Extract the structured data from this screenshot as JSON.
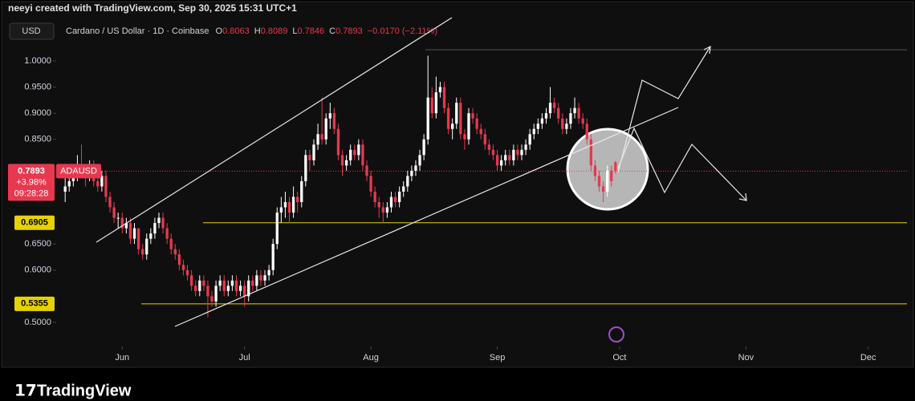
{
  "chart_data": {
    "type": "candlestick",
    "credit": "neeyi created with TradingView.com, Sep 30, 2025 15:31 UTC+1",
    "currency": "USD",
    "title": "Cardano / US Dollar · 1D · Coinbase",
    "ohlc_labels": [
      "O",
      "H",
      "L",
      "C"
    ],
    "change": "−0.0170 (−2.11%)",
    "symbol": "ADAUSD",
    "daily_change": "+3.98%",
    "countdown": "09:28:28",
    "brand": "TradingView",
    "up_color": "#ffffff",
    "down_color": "#e8384f",
    "level_color": "#e6d200",
    "levels": [
      0.6905,
      0.5355
    ],
    "xlim": [
      -2.2,
      200.6
    ],
    "xticks": [
      {
        "value": 14,
        "label": "Jun"
      },
      {
        "value": 44,
        "label": "Jul"
      },
      {
        "value": 75,
        "label": "Aug"
      },
      {
        "value": 106,
        "label": "Sep"
      },
      {
        "value": 136,
        "label": "Oct"
      },
      {
        "value": 167,
        "label": "Nov"
      },
      {
        "value": 197,
        "label": "Dec"
      }
    ],
    "ylim": [
      0.457,
      1.0245
    ],
    "yticks": [
      {
        "value": 1,
        "label": "1.0000"
      },
      {
        "value": 0.95,
        "label": "0.9500"
      },
      {
        "value": 0.9,
        "label": "0.9000"
      },
      {
        "value": 0.85,
        "label": "0.8500"
      },
      {
        "value": 0.65,
        "label": "0.6500"
      },
      {
        "value": 0.6,
        "label": "0.6000"
      },
      {
        "value": 0.5,
        "label": "0.5000"
      }
    ],
    "ohlc": [
      [
        0.75,
        0.78,
        0.73,
        0.76
      ],
      [
        0.76,
        0.79,
        0.75,
        0.77
      ],
      [
        0.77,
        0.8,
        0.76,
        0.78
      ],
      [
        0.78,
        0.82,
        0.77,
        0.8
      ],
      [
        0.8,
        0.84,
        0.78,
        0.79
      ],
      [
        0.79,
        0.8,
        0.76,
        0.78
      ],
      [
        0.78,
        0.81,
        0.77,
        0.8
      ],
      [
        0.8,
        0.81,
        0.76,
        0.77
      ],
      [
        0.77,
        0.78,
        0.75,
        0.76
      ],
      [
        0.76,
        0.79,
        0.75,
        0.78
      ],
      [
        0.78,
        0.79,
        0.73,
        0.74
      ],
      [
        0.74,
        0.75,
        0.71,
        0.72
      ],
      [
        0.72,
        0.73,
        0.69,
        0.7
      ],
      [
        0.7,
        0.71,
        0.68,
        0.7
      ],
      [
        0.7,
        0.71,
        0.67,
        0.68
      ],
      [
        0.68,
        0.7,
        0.67,
        0.69
      ],
      [
        0.69,
        0.7,
        0.65,
        0.66
      ],
      [
        0.66,
        0.69,
        0.65,
        0.68
      ],
      [
        0.68,
        0.68,
        0.63,
        0.64
      ],
      [
        0.64,
        0.65,
        0.62,
        0.63
      ],
      [
        0.63,
        0.67,
        0.62,
        0.66
      ],
      [
        0.66,
        0.68,
        0.65,
        0.67
      ],
      [
        0.67,
        0.7,
        0.66,
        0.69
      ],
      [
        0.69,
        0.71,
        0.68,
        0.7
      ],
      [
        0.7,
        0.71,
        0.67,
        0.68
      ],
      [
        0.68,
        0.69,
        0.65,
        0.66
      ],
      [
        0.66,
        0.67,
        0.63,
        0.64
      ],
      [
        0.64,
        0.65,
        0.62,
        0.63
      ],
      [
        0.63,
        0.64,
        0.6,
        0.61
      ],
      [
        0.61,
        0.62,
        0.59,
        0.6
      ],
      [
        0.6,
        0.61,
        0.58,
        0.59
      ],
      [
        0.59,
        0.6,
        0.56,
        0.57
      ],
      [
        0.57,
        0.58,
        0.55,
        0.56
      ],
      [
        0.56,
        0.59,
        0.55,
        0.58
      ],
      [
        0.58,
        0.59,
        0.56,
        0.57
      ],
      [
        0.57,
        0.58,
        0.51,
        0.55
      ],
      [
        0.55,
        0.56,
        0.53,
        0.54
      ],
      [
        0.54,
        0.58,
        0.53,
        0.57
      ],
      [
        0.57,
        0.59,
        0.56,
        0.58
      ],
      [
        0.58,
        0.59,
        0.55,
        0.56
      ],
      [
        0.56,
        0.58,
        0.55,
        0.57
      ],
      [
        0.57,
        0.59,
        0.56,
        0.58
      ],
      [
        0.58,
        0.59,
        0.55,
        0.56
      ],
      [
        0.56,
        0.58,
        0.55,
        0.57
      ],
      [
        0.57,
        0.58,
        0.53,
        0.55
      ],
      [
        0.55,
        0.59,
        0.54,
        0.58
      ],
      [
        0.58,
        0.59,
        0.56,
        0.57
      ],
      [
        0.57,
        0.6,
        0.56,
        0.59
      ],
      [
        0.59,
        0.6,
        0.57,
        0.58
      ],
      [
        0.58,
        0.6,
        0.57,
        0.59
      ],
      [
        0.59,
        0.61,
        0.58,
        0.6
      ],
      [
        0.6,
        0.66,
        0.59,
        0.65
      ],
      [
        0.65,
        0.72,
        0.64,
        0.71
      ],
      [
        0.71,
        0.74,
        0.69,
        0.72
      ],
      [
        0.72,
        0.75,
        0.7,
        0.73
      ],
      [
        0.73,
        0.74,
        0.69,
        0.71
      ],
      [
        0.71,
        0.76,
        0.7,
        0.74
      ],
      [
        0.74,
        0.75,
        0.71,
        0.73
      ],
      [
        0.73,
        0.78,
        0.72,
        0.77
      ],
      [
        0.77,
        0.83,
        0.76,
        0.82
      ],
      [
        0.82,
        0.83,
        0.79,
        0.81
      ],
      [
        0.81,
        0.85,
        0.8,
        0.84
      ],
      [
        0.84,
        0.88,
        0.83,
        0.86
      ],
      [
        0.86,
        0.93,
        0.84,
        0.85
      ],
      [
        0.85,
        0.9,
        0.84,
        0.89
      ],
      [
        0.89,
        0.92,
        0.87,
        0.9
      ],
      [
        0.9,
        0.91,
        0.86,
        0.87
      ],
      [
        0.87,
        0.88,
        0.81,
        0.82
      ],
      [
        0.82,
        0.83,
        0.78,
        0.8
      ],
      [
        0.8,
        0.82,
        0.79,
        0.81
      ],
      [
        0.81,
        0.84,
        0.8,
        0.83
      ],
      [
        0.83,
        0.84,
        0.81,
        0.82
      ],
      [
        0.82,
        0.85,
        0.81,
        0.84
      ],
      [
        0.84,
        0.85,
        0.79,
        0.8
      ],
      [
        0.8,
        0.81,
        0.77,
        0.78
      ],
      [
        0.78,
        0.79,
        0.74,
        0.75
      ],
      [
        0.75,
        0.76,
        0.72,
        0.73
      ],
      [
        0.73,
        0.74,
        0.7,
        0.72
      ],
      [
        0.72,
        0.73,
        0.69,
        0.71
      ],
      [
        0.71,
        0.73,
        0.7,
        0.72
      ],
      [
        0.72,
        0.75,
        0.71,
        0.74
      ],
      [
        0.74,
        0.75,
        0.72,
        0.73
      ],
      [
        0.73,
        0.76,
        0.72,
        0.75
      ],
      [
        0.75,
        0.77,
        0.74,
        0.76
      ],
      [
        0.76,
        0.79,
        0.75,
        0.78
      ],
      [
        0.78,
        0.8,
        0.77,
        0.79
      ],
      [
        0.79,
        0.81,
        0.78,
        0.8
      ],
      [
        0.8,
        0.83,
        0.79,
        0.82
      ],
      [
        0.82,
        0.86,
        0.81,
        0.85
      ],
      [
        0.85,
        1.01,
        0.84,
        0.93
      ],
      [
        0.93,
        0.95,
        0.89,
        0.9
      ],
      [
        0.9,
        0.97,
        0.89,
        0.94
      ],
      [
        0.94,
        0.96,
        0.93,
        0.95
      ],
      [
        0.95,
        0.96,
        0.9,
        0.91
      ],
      [
        0.91,
        0.92,
        0.86,
        0.87
      ],
      [
        0.87,
        0.89,
        0.85,
        0.88
      ],
      [
        0.88,
        0.93,
        0.87,
        0.92
      ],
      [
        0.92,
        0.93,
        0.85,
        0.86
      ],
      [
        0.86,
        0.87,
        0.83,
        0.85
      ],
      [
        0.85,
        0.91,
        0.84,
        0.9
      ],
      [
        0.9,
        0.91,
        0.88,
        0.89
      ],
      [
        0.89,
        0.9,
        0.86,
        0.87
      ],
      [
        0.87,
        0.88,
        0.85,
        0.86
      ],
      [
        0.86,
        0.87,
        0.83,
        0.84
      ],
      [
        0.84,
        0.85,
        0.82,
        0.83
      ],
      [
        0.83,
        0.84,
        0.81,
        0.82
      ],
      [
        0.82,
        0.83,
        0.79,
        0.8
      ],
      [
        0.8,
        0.82,
        0.79,
        0.81
      ],
      [
        0.81,
        0.83,
        0.8,
        0.82
      ],
      [
        0.82,
        0.83,
        0.8,
        0.81
      ],
      [
        0.81,
        0.84,
        0.8,
        0.83
      ],
      [
        0.83,
        0.84,
        0.81,
        0.82
      ],
      [
        0.82,
        0.84,
        0.81,
        0.83
      ],
      [
        0.83,
        0.85,
        0.82,
        0.84
      ],
      [
        0.84,
        0.87,
        0.83,
        0.86
      ],
      [
        0.86,
        0.88,
        0.85,
        0.87
      ],
      [
        0.87,
        0.89,
        0.86,
        0.88
      ],
      [
        0.88,
        0.9,
        0.87,
        0.89
      ],
      [
        0.89,
        0.91,
        0.88,
        0.9
      ],
      [
        0.9,
        0.95,
        0.89,
        0.92
      ],
      [
        0.92,
        0.93,
        0.9,
        0.91
      ],
      [
        0.91,
        0.92,
        0.88,
        0.89
      ],
      [
        0.89,
        0.9,
        0.86,
        0.87
      ],
      [
        0.87,
        0.89,
        0.86,
        0.88
      ],
      [
        0.88,
        0.91,
        0.87,
        0.9
      ],
      [
        0.9,
        0.93,
        0.89,
        0.91
      ],
      [
        0.91,
        0.92,
        0.88,
        0.89
      ],
      [
        0.89,
        0.9,
        0.87,
        0.88
      ],
      [
        0.88,
        0.89,
        0.84,
        0.85
      ],
      [
        0.85,
        0.86,
        0.79,
        0.8
      ],
      [
        0.8,
        0.81,
        0.77,
        0.78
      ],
      [
        0.78,
        0.79,
        0.75,
        0.76
      ],
      [
        0.76,
        0.77,
        0.73,
        0.75
      ],
      [
        0.75,
        0.8,
        0.74,
        0.79
      ],
      [
        0.79,
        0.8,
        0.76,
        0.77
      ],
      [
        0.8063,
        0.8089,
        0.7846,
        0.7893
      ]
    ]
  }
}
